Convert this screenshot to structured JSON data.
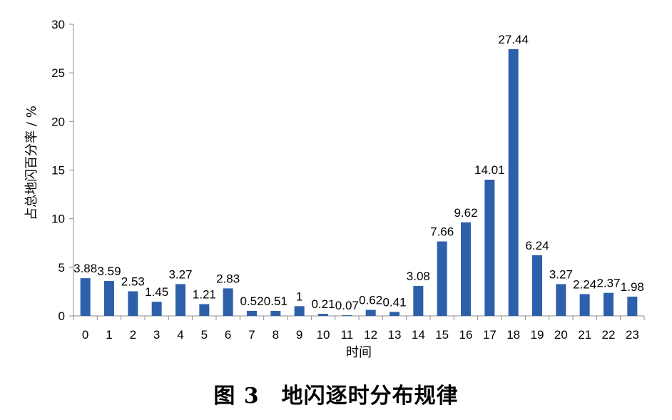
{
  "caption": "图 3　地闪逐时分布规律",
  "chart_data": {
    "type": "bar",
    "xlabel": "时间",
    "ylabel": "占总地闪百分率 / %",
    "ylim": [
      0,
      30
    ],
    "yticks": [
      0,
      5,
      10,
      15,
      20,
      25,
      30
    ],
    "grid": false,
    "categories": [
      "0",
      "1",
      "2",
      "3",
      "4",
      "5",
      "6",
      "7",
      "8",
      "9",
      "10",
      "11",
      "12",
      "13",
      "14",
      "15",
      "16",
      "17",
      "18",
      "19",
      "20",
      "21",
      "22",
      "23"
    ],
    "values": [
      3.88,
      3.59,
      2.53,
      1.45,
      3.27,
      1.21,
      2.83,
      0.52,
      0.51,
      1,
      0.21,
      0.07,
      0.62,
      0.41,
      3.08,
      7.66,
      9.62,
      14.01,
      27.44,
      6.24,
      3.27,
      2.24,
      2.37,
      1.98
    ],
    "data_labels": [
      "3.88",
      "3.59",
      "2.53",
      "1.45",
      "3.27",
      "1.21",
      "2.83",
      "0.52",
      "0.51",
      "1",
      "0.21",
      "0.07",
      "0.62",
      "0.41",
      "3.08",
      "7.66",
      "9.62",
      "14.01",
      "27.44",
      "6.24",
      "3.27",
      "2.24",
      "2.37",
      "1.98"
    ],
    "bar_color": "#2E5FAA"
  }
}
